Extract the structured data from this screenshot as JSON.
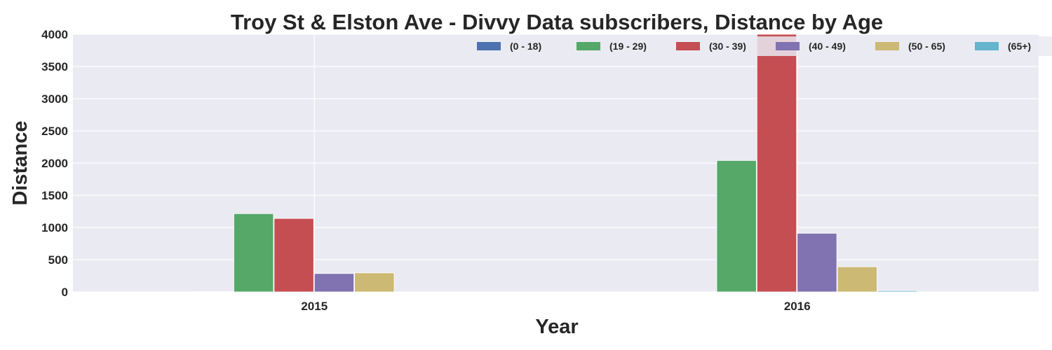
{
  "chart_data": {
    "type": "bar",
    "title": "Troy St & Elston Ave - Divvy Data subscribers, Distance by Age",
    "xlabel": "Year",
    "ylabel": "Distance",
    "categories": [
      "2015",
      "2016"
    ],
    "ylim": [
      0,
      4000
    ],
    "yticks": [
      0,
      500,
      1000,
      1500,
      2000,
      2500,
      3000,
      3500,
      4000
    ],
    "grid": true,
    "legend_position": "top-right",
    "series": [
      {
        "name": "(0 - 18)",
        "color": "#4c72b0",
        "values": [
          5,
          0
        ]
      },
      {
        "name": "(19 - 29)",
        "color": "#55a868",
        "values": [
          1215,
          2040
        ]
      },
      {
        "name": "(30 - 39)",
        "color": "#c44e52",
        "values": [
          1140,
          4000
        ]
      },
      {
        "name": "(40 - 49)",
        "color": "#8172b2",
        "values": [
          285,
          910
        ]
      },
      {
        "name": "(50 - 65)",
        "color": "#ccb974",
        "values": [
          295,
          390
        ]
      },
      {
        "name": "(65+)",
        "color": "#64b5cd",
        "values": [
          0,
          18
        ]
      }
    ]
  }
}
